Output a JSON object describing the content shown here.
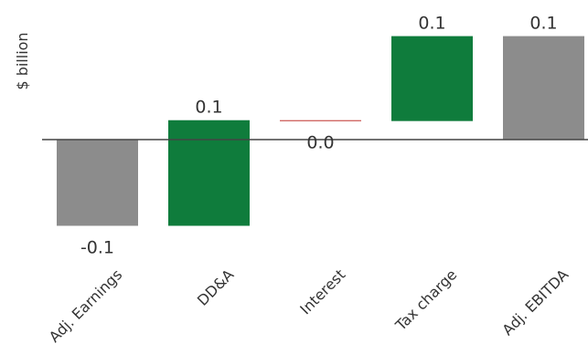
{
  "chart_data": {
    "type": "waterfall",
    "ylabel": "$ billion",
    "categories": [
      "Adj. Earnings",
      "DD&A",
      "Interest",
      "Tax charge",
      "Adj. EBITDA"
    ],
    "bars": [
      {
        "category": "Adj. Earnings",
        "kind": "total",
        "start": 0,
        "end": -0.1,
        "value": -0.1,
        "label": "-0.1",
        "color": "#8c8c8c",
        "label_position": "below"
      },
      {
        "category": "DD&A",
        "kind": "increase",
        "start": -0.1,
        "end": 0.0225,
        "value": 0.1,
        "label": "0.1",
        "color": "#0f7c3c",
        "label_position": "above"
      },
      {
        "category": "Interest",
        "kind": "decrease",
        "start": 0.0225,
        "end": 0.0215,
        "value": 0.0,
        "label": "0.0",
        "color": "#c0302a",
        "label_position": "below"
      },
      {
        "category": "Tax charge",
        "kind": "increase",
        "start": 0.0215,
        "end": 0.12,
        "value": 0.1,
        "label": "0.1",
        "color": "#0f7c3c",
        "label_position": "above"
      },
      {
        "category": "Adj. EBITDA",
        "kind": "total",
        "start": 0,
        "end": 0.12,
        "value": 0.1,
        "label": "0.1",
        "color": "#8c8c8c",
        "label_position": "above"
      }
    ],
    "ylim": [
      -0.14,
      0.16
    ],
    "grid": false,
    "legend": "none",
    "zero_line_color": "#444444"
  }
}
